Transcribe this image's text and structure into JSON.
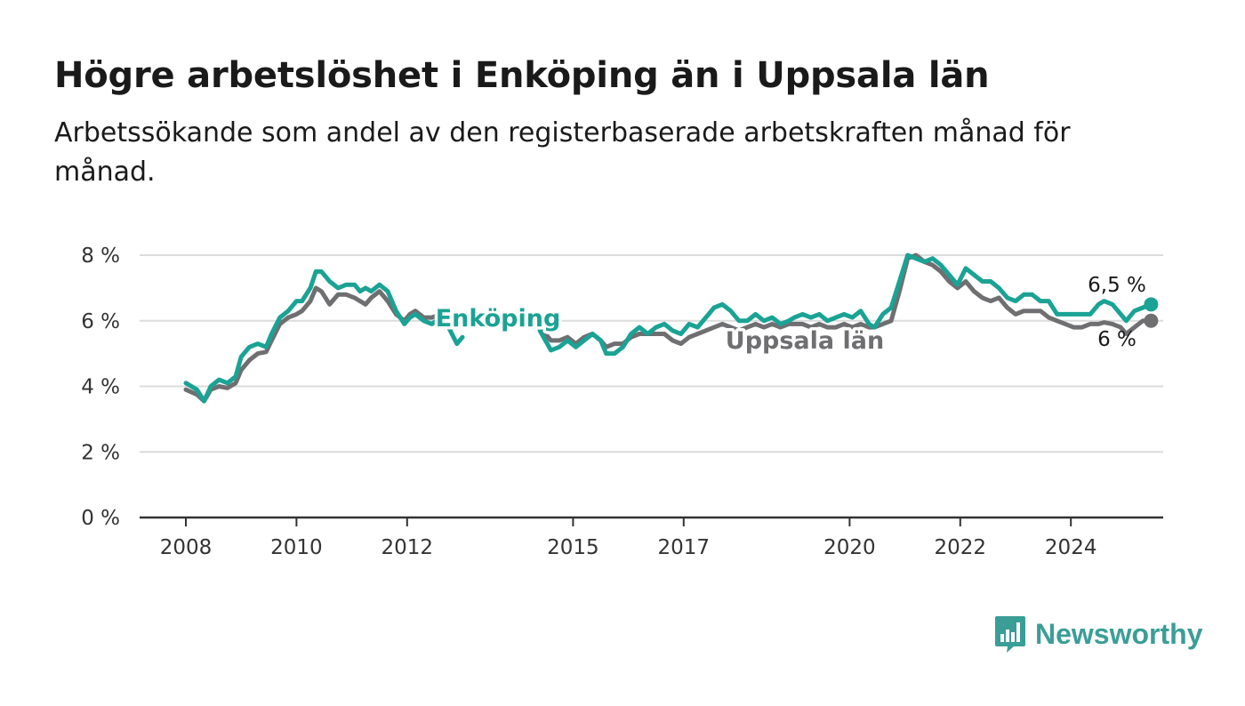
{
  "title": "Högre arbetslöshet i Enköping än i Uppsala län",
  "subtitle": "Arbetssökande som andel av den registerbaserade arbetskraften månad för månad.",
  "brand": {
    "name": "Newsworthy",
    "color": "#3a9e96"
  },
  "colors": {
    "enkoping": "#1aa394",
    "uppsala": "#6f6f72",
    "grid": "#dcdcdc",
    "axis": "#333333"
  },
  "chart_data": {
    "type": "line",
    "title": "Högre arbetslöshet i Enköping än i Uppsala län",
    "xlabel": "",
    "ylabel": "",
    "x_range": [
      2007.3,
      2025.8
    ],
    "ylim": [
      0,
      8
    ],
    "y_ticks": [
      0,
      2,
      4,
      6,
      8
    ],
    "y_tick_labels": [
      "0 %",
      "2 %",
      "4 %",
      "6 %",
      "8 %"
    ],
    "x_ticks": [
      2008,
      2010,
      2012,
      2015,
      2017,
      2020,
      2022,
      2024
    ],
    "x_tick_labels": [
      "2008",
      "2010",
      "2012",
      "2015",
      "2017",
      "2020",
      "2022",
      "2024"
    ],
    "grid": true,
    "legend": "inline labels",
    "series": [
      {
        "name": "Enköping",
        "key": "enkoping",
        "end_label": "6,5 %",
        "points": [
          [
            2008.0,
            4.1
          ],
          [
            2008.2,
            3.9
          ],
          [
            2008.33,
            3.55
          ],
          [
            2008.45,
            4.0
          ],
          [
            2008.6,
            4.2
          ],
          [
            2008.75,
            4.1
          ],
          [
            2008.9,
            4.3
          ],
          [
            2009.0,
            4.9
          ],
          [
            2009.15,
            5.2
          ],
          [
            2009.3,
            5.3
          ],
          [
            2009.45,
            5.2
          ],
          [
            2009.55,
            5.6
          ],
          [
            2009.7,
            6.1
          ],
          [
            2009.85,
            6.3
          ],
          [
            2010.0,
            6.6
          ],
          [
            2010.1,
            6.6
          ],
          [
            2010.25,
            7.0
          ],
          [
            2010.35,
            7.5
          ],
          [
            2010.45,
            7.5
          ],
          [
            2010.6,
            7.2
          ],
          [
            2010.75,
            7.0
          ],
          [
            2010.9,
            7.1
          ],
          [
            2011.05,
            7.1
          ],
          [
            2011.15,
            6.9
          ],
          [
            2011.25,
            7.0
          ],
          [
            2011.35,
            6.9
          ],
          [
            2011.5,
            7.1
          ],
          [
            2011.65,
            6.9
          ],
          [
            2011.8,
            6.3
          ],
          [
            2011.95,
            5.9
          ],
          [
            2012.05,
            6.1
          ],
          [
            2012.15,
            6.2
          ],
          [
            2012.3,
            6.0
          ],
          [
            2012.45,
            5.9
          ],
          [
            2012.6,
            6.1
          ],
          [
            2012.75,
            5.8
          ],
          [
            2012.9,
            5.3
          ],
          [
            2013.0,
            5.5
          ],
          null,
          [
            2014.4,
            5.7
          ],
          [
            2014.6,
            5.1
          ],
          [
            2014.75,
            5.2
          ],
          [
            2014.9,
            5.4
          ],
          [
            2015.05,
            5.2
          ],
          [
            2015.2,
            5.4
          ],
          [
            2015.35,
            5.6
          ],
          [
            2015.5,
            5.4
          ],
          [
            2015.6,
            5.0
          ],
          [
            2015.75,
            5.0
          ],
          [
            2015.9,
            5.2
          ],
          [
            2016.05,
            5.6
          ],
          [
            2016.2,
            5.8
          ],
          [
            2016.35,
            5.6
          ],
          [
            2016.5,
            5.8
          ],
          [
            2016.65,
            5.9
          ],
          [
            2016.8,
            5.7
          ],
          [
            2016.95,
            5.6
          ],
          [
            2017.1,
            5.9
          ],
          [
            2017.25,
            5.8
          ],
          [
            2017.4,
            6.1
          ],
          [
            2017.55,
            6.4
          ],
          [
            2017.7,
            6.5
          ],
          [
            2017.85,
            6.3
          ],
          [
            2018.0,
            6.0
          ],
          [
            2018.15,
            6.0
          ],
          [
            2018.3,
            6.2
          ],
          [
            2018.45,
            6.0
          ],
          [
            2018.6,
            6.1
          ],
          [
            2018.75,
            5.9
          ],
          [
            2018.9,
            6.0
          ],
          [
            2019.0,
            6.1
          ],
          [
            2019.15,
            6.2
          ],
          [
            2019.3,
            6.1
          ],
          [
            2019.45,
            6.2
          ],
          [
            2019.6,
            6.0
          ],
          [
            2019.75,
            6.1
          ],
          [
            2019.9,
            6.2
          ],
          [
            2020.05,
            6.1
          ],
          [
            2020.2,
            6.3
          ],
          [
            2020.35,
            5.9
          ],
          [
            2020.45,
            5.8
          ],
          [
            2020.6,
            6.2
          ],
          [
            2020.75,
            6.4
          ],
          [
            2020.9,
            7.2
          ],
          [
            2021.05,
            8.0
          ],
          [
            2021.2,
            7.9
          ],
          [
            2021.35,
            7.8
          ],
          [
            2021.5,
            7.9
          ],
          [
            2021.65,
            7.7
          ],
          [
            2021.8,
            7.4
          ],
          [
            2021.95,
            7.1
          ],
          [
            2022.1,
            7.6
          ],
          [
            2022.25,
            7.4
          ],
          [
            2022.4,
            7.2
          ],
          [
            2022.55,
            7.2
          ],
          [
            2022.7,
            7.0
          ],
          [
            2022.85,
            6.7
          ],
          [
            2023.0,
            6.6
          ],
          [
            2023.15,
            6.8
          ],
          [
            2023.3,
            6.8
          ],
          [
            2023.45,
            6.6
          ],
          [
            2023.6,
            6.6
          ],
          [
            2023.75,
            6.2
          ],
          [
            2023.9,
            6.2
          ],
          [
            2024.05,
            6.2
          ],
          [
            2024.2,
            6.2
          ],
          [
            2024.35,
            6.2
          ],
          [
            2024.5,
            6.5
          ],
          [
            2024.6,
            6.6
          ],
          [
            2024.75,
            6.5
          ],
          [
            2024.9,
            6.2
          ],
          [
            2025.0,
            6.0
          ],
          [
            2025.15,
            6.3
          ],
          [
            2025.3,
            6.4
          ],
          [
            2025.45,
            6.5
          ]
        ]
      },
      {
        "name": "Uppsala län",
        "key": "uppsala",
        "end_label": "6 %",
        "points": [
          [
            2008.0,
            3.9
          ],
          [
            2008.2,
            3.75
          ],
          [
            2008.33,
            3.55
          ],
          [
            2008.45,
            3.9
          ],
          [
            2008.6,
            4.0
          ],
          [
            2008.75,
            3.95
          ],
          [
            2008.9,
            4.1
          ],
          [
            2009.0,
            4.5
          ],
          [
            2009.15,
            4.8
          ],
          [
            2009.3,
            5.0
          ],
          [
            2009.45,
            5.05
          ],
          [
            2009.55,
            5.4
          ],
          [
            2009.7,
            5.9
          ],
          [
            2009.85,
            6.1
          ],
          [
            2010.0,
            6.2
          ],
          [
            2010.1,
            6.3
          ],
          [
            2010.25,
            6.6
          ],
          [
            2010.35,
            7.0
          ],
          [
            2010.45,
            6.9
          ],
          [
            2010.6,
            6.5
          ],
          [
            2010.75,
            6.8
          ],
          [
            2010.9,
            6.8
          ],
          [
            2011.05,
            6.7
          ],
          [
            2011.15,
            6.6
          ],
          [
            2011.25,
            6.5
          ],
          [
            2011.35,
            6.7
          ],
          [
            2011.5,
            6.9
          ],
          [
            2011.65,
            6.6
          ],
          [
            2011.8,
            6.2
          ],
          [
            2011.95,
            6.0
          ],
          [
            2012.05,
            6.2
          ],
          [
            2012.15,
            6.3
          ],
          [
            2012.3,
            6.1
          ],
          [
            2012.45,
            6.1
          ],
          [
            2012.6,
            6.2
          ],
          [
            2012.75,
            6.0
          ],
          [
            2012.9,
            5.8
          ],
          [
            2013.0,
            6.2
          ],
          null,
          [
            2014.4,
            5.8
          ],
          [
            2014.6,
            5.4
          ],
          [
            2014.75,
            5.4
          ],
          [
            2014.9,
            5.5
          ],
          [
            2015.05,
            5.3
          ],
          [
            2015.2,
            5.5
          ],
          [
            2015.35,
            5.6
          ],
          [
            2015.5,
            5.4
          ],
          [
            2015.6,
            5.2
          ],
          [
            2015.75,
            5.3
          ],
          [
            2015.9,
            5.3
          ],
          [
            2016.05,
            5.5
          ],
          [
            2016.2,
            5.6
          ],
          [
            2016.35,
            5.6
          ],
          [
            2016.5,
            5.6
          ],
          [
            2016.65,
            5.6
          ],
          [
            2016.8,
            5.4
          ],
          [
            2016.95,
            5.3
          ],
          [
            2017.1,
            5.5
          ],
          [
            2017.25,
            5.6
          ],
          [
            2017.4,
            5.7
          ],
          [
            2017.55,
            5.8
          ],
          [
            2017.7,
            5.9
          ],
          [
            2017.85,
            5.8
          ],
          [
            2018.0,
            5.7
          ],
          [
            2018.15,
            5.8
          ],
          [
            2018.3,
            5.9
          ],
          [
            2018.45,
            5.8
          ],
          [
            2018.6,
            5.9
          ],
          [
            2018.75,
            5.8
          ],
          [
            2018.9,
            5.9
          ],
          [
            2019.0,
            5.9
          ],
          [
            2019.15,
            5.9
          ],
          [
            2019.3,
            5.8
          ],
          [
            2019.45,
            5.9
          ],
          [
            2019.6,
            5.8
          ],
          [
            2019.75,
            5.8
          ],
          [
            2019.9,
            5.9
          ],
          [
            2020.05,
            5.8
          ],
          [
            2020.2,
            5.9
          ],
          [
            2020.35,
            5.8
          ],
          [
            2020.45,
            5.8
          ],
          [
            2020.6,
            5.9
          ],
          [
            2020.75,
            6.0
          ],
          [
            2020.9,
            6.9
          ],
          [
            2021.05,
            7.9
          ],
          [
            2021.2,
            8.0
          ],
          [
            2021.35,
            7.8
          ],
          [
            2021.5,
            7.7
          ],
          [
            2021.65,
            7.5
          ],
          [
            2021.8,
            7.2
          ],
          [
            2021.95,
            7.0
          ],
          [
            2022.1,
            7.2
          ],
          [
            2022.25,
            6.9
          ],
          [
            2022.4,
            6.7
          ],
          [
            2022.55,
            6.6
          ],
          [
            2022.7,
            6.7
          ],
          [
            2022.85,
            6.4
          ],
          [
            2023.0,
            6.2
          ],
          [
            2023.15,
            6.3
          ],
          [
            2023.3,
            6.3
          ],
          [
            2023.45,
            6.3
          ],
          [
            2023.6,
            6.1
          ],
          [
            2023.75,
            6.0
          ],
          [
            2023.9,
            5.9
          ],
          [
            2024.05,
            5.8
          ],
          [
            2024.2,
            5.8
          ],
          [
            2024.35,
            5.9
          ],
          [
            2024.5,
            5.9
          ],
          [
            2024.6,
            5.95
          ],
          [
            2024.75,
            5.9
          ],
          [
            2024.9,
            5.8
          ],
          [
            2025.0,
            5.6
          ],
          [
            2025.15,
            5.8
          ],
          [
            2025.3,
            6.0
          ],
          [
            2025.45,
            6.0
          ]
        ]
      }
    ]
  }
}
